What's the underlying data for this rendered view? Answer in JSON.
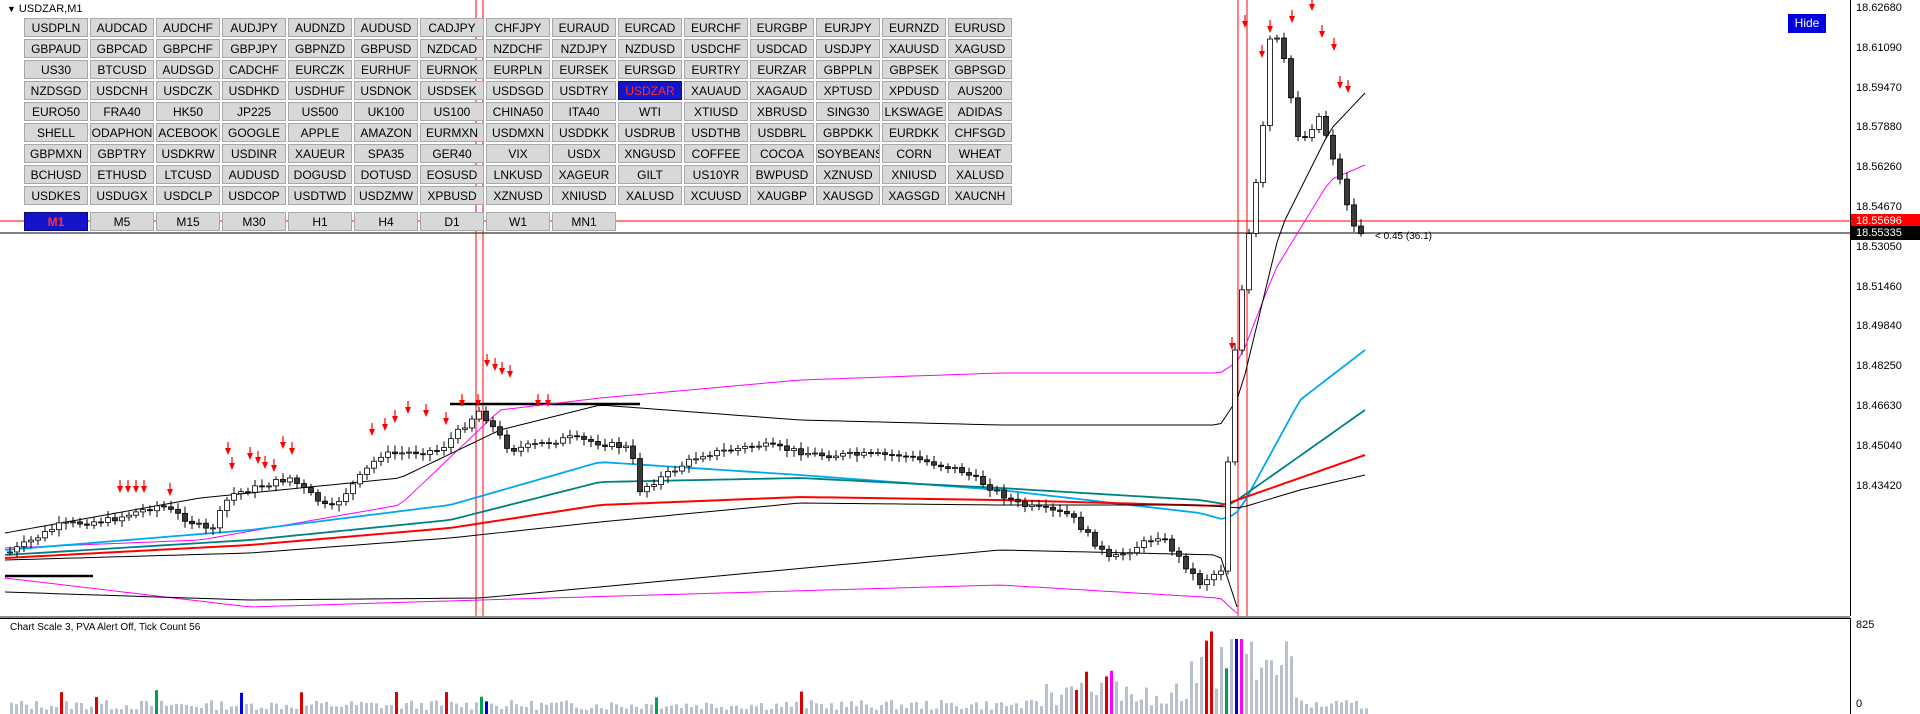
{
  "chart_title": "USDZAR,M1",
  "hide_label": "Hide",
  "symbols": [
    "USDPLN",
    "AUDCAD",
    "AUDCHF",
    "AUDJPY",
    "AUDNZD",
    "AUDUSD",
    "CADJPY",
    "CHFJPY",
    "EURAUD",
    "EURCAD",
    "EURCHF",
    "EURGBP",
    "EURJPY",
    "EURNZD",
    "EURUSD",
    "GBPAUD",
    "GBPCAD",
    "GBPCHF",
    "GBPJPY",
    "GBPNZD",
    "GBPUSD",
    "NZDCAD",
    "NZDCHF",
    "NZDJPY",
    "NZDUSD",
    "USDCHF",
    "USDCAD",
    "USDJPY",
    "XAUUSD",
    "XAGUSD",
    "US30",
    "BTCUSD",
    "AUDSGD",
    "CADCHF",
    "EURCZK",
    "EURHUF",
    "EURNOK",
    "EURPLN",
    "EURSEK",
    "EURSGD",
    "EURTRY",
    "EURZAR",
    "GBPPLN",
    "GBPSEK",
    "GBPSGD",
    "NZDSGD",
    "USDCNH",
    "USDCZK",
    "USDHKD",
    "USDHUF",
    "USDNOK",
    "USDSEK",
    "USDSGD",
    "USDTRY",
    "USDZAR",
    "XAUAUD",
    "XAGAUD",
    "XPTUSD",
    "XPDUSD",
    "AUS200",
    "EURO50",
    "FRA40",
    "HK50",
    "JP225",
    "US500",
    "UK100",
    "US100",
    "CHINA50",
    "ITA40",
    "WTI",
    "XTIUSD",
    "XBRUSD",
    "SING30",
    "LKSWAGE",
    "ADIDAS",
    "SHELL",
    "ODAPHON",
    "ACEBOOK",
    "GOOGLE",
    "APPLE",
    "AMAZON",
    "EURMXN",
    "USDMXN",
    "USDDKK",
    "USDRUB",
    "USDTHB",
    "USDBRL",
    "GBPDKK",
    "EURDKK",
    "CHFSGD",
    "GBPMXN",
    "GBPTRY",
    "USDKRW",
    "USDINR",
    "XAUEUR",
    "SPA35",
    "GER40",
    "VIX",
    "USDX",
    "XNGUSD",
    "COFFEE",
    "COCOA",
    "SOYBEANS",
    "CORN",
    "WHEAT",
    "BCHUSD",
    "ETHUSD",
    "LTCUSD",
    "AUDUSD",
    "DOGUSD",
    "DOTUSD",
    "EOSUSD",
    "LNKUSD",
    "XAGEUR",
    "GILT",
    "US10YR",
    "BWPUSD",
    "XZNUSD",
    "XNIUSD",
    "XALUSD",
    "USDKES",
    "USDUGX",
    "USDCLP",
    "USDCOP",
    "USDTWD",
    "USDZMW",
    "XPBUSD",
    "XZNUSD",
    "XNIUSD",
    "XALUSD",
    "XCUUSD",
    "XAUGBP",
    "XAUSGD",
    "XAGSGD",
    "XAUCNH"
  ],
  "active_symbol": "USDZAR",
  "timeframes": [
    "M1",
    "M5",
    "M15",
    "M30",
    "H1",
    "H4",
    "D1",
    "W1",
    "MN1"
  ],
  "active_timeframe": "M1",
  "price_axis": [
    "18.62680",
    "18.61090",
    "18.59470",
    "18.57880",
    "18.56260",
    "18.54670",
    "18.53050",
    "18.51460",
    "18.49840",
    "18.48250",
    "18.46630",
    "18.45040",
    "18.43420"
  ],
  "current_price_red": "18.55696",
  "current_price_black": "18.55335",
  "candle_annotation": "< 0.45 (36.1)",
  "indicator_label": "Chart Scale  3,   PVA Alert Off,   Tick Count  56",
  "indicator_scale_top": "825",
  "indicator_scale_bottom": "0",
  "colors": {
    "active_button_bg": "#1414c8",
    "active_button_text": "#ff3030",
    "hide_button_bg": "#0000dd",
    "bid_line": "#ff0000",
    "ask_line": "#000000",
    "ema_fast": "#00a8f0",
    "ema_mid": "#008080",
    "ema_slow": "#ff0000",
    "band_outer": "#ff00ff",
    "band_inner": "#000000",
    "vol_climax": "#dc0000",
    "vol_rising": "#00a050",
    "vol_churn": "#0000dc",
    "vol_normal": "#b8c0d0",
    "vol_highlight": "#ff00ff",
    "signal_arrow": "#ff0000"
  }
}
